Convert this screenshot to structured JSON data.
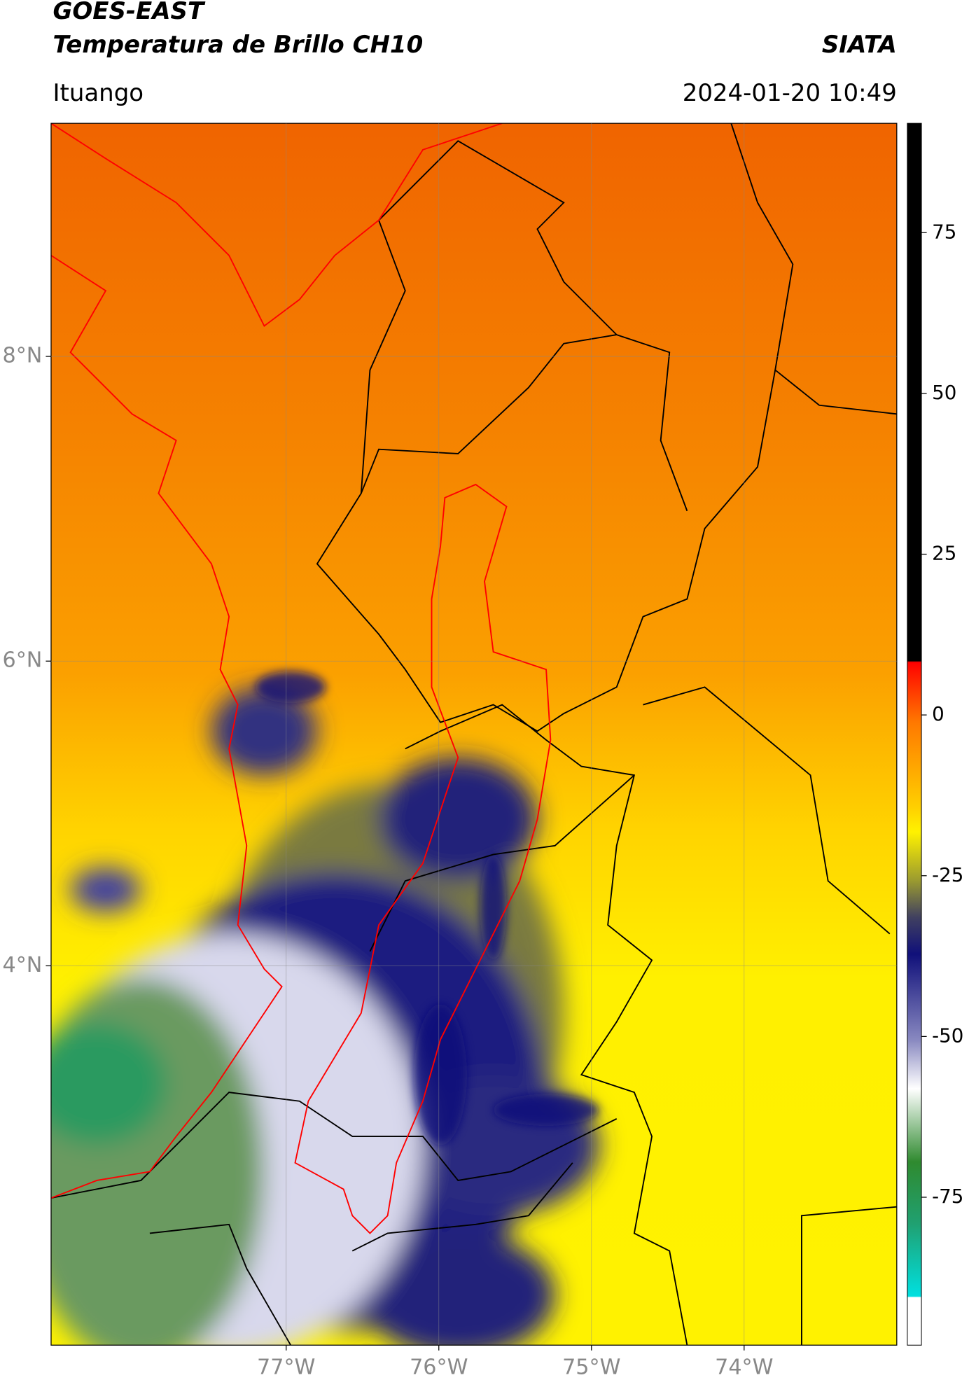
{
  "header": {
    "title": "GOES-EAST",
    "subtitle": "Temperatura de Brillo CH10",
    "brand": "SIATA",
    "location": "Ituango",
    "datetime": "2024-01-20 10:49"
  },
  "map": {
    "lonlim": [
      -78.54,
      -73.0
    ],
    "latlim": [
      1.51,
      9.53
    ],
    "lon_ticks": [
      {
        "value": -77,
        "label": "77°W"
      },
      {
        "value": -76,
        "label": "76°W"
      },
      {
        "value": -75,
        "label": "75°W"
      },
      {
        "value": -74,
        "label": "74°W"
      }
    ],
    "lat_ticks": [
      {
        "value": 8,
        "label": "8°N"
      },
      {
        "value": 6,
        "label": "6°N"
      },
      {
        "value": 4,
        "label": "4°N"
      }
    ],
    "grid": true
  },
  "colorbar": {
    "lim": [
      -98,
      92
    ],
    "ticks": [
      75,
      50,
      25,
      0,
      -25,
      -50,
      -75
    ]
  }
}
